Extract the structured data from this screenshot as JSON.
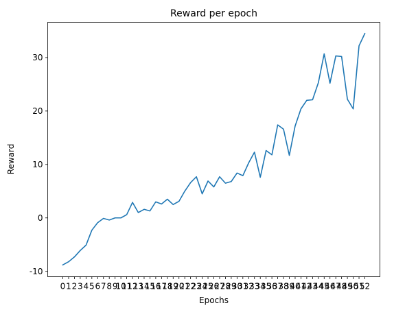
{
  "chart_data": {
    "type": "line",
    "title": "Reward per epoch",
    "xlabel": "Epochs",
    "ylabel": "Reward",
    "x": [
      0,
      1,
      2,
      3,
      4,
      5,
      6,
      7,
      8,
      9,
      10,
      11,
      12,
      13,
      14,
      15,
      16,
      17,
      18,
      19,
      20,
      21,
      22,
      23,
      24,
      25,
      26,
      27,
      28,
      29,
      30,
      31,
      32,
      33,
      34,
      35,
      36,
      37,
      38,
      39,
      40,
      41,
      42,
      43,
      44,
      45,
      46,
      47,
      48,
      49,
      50,
      51,
      52
    ],
    "series": [
      {
        "values": [
          -8.8,
          -8.2,
          -7.3,
          -6.1,
          -5.1,
          -2.3,
          -0.9,
          -0.1,
          -0.4,
          0.0,
          0.0,
          0.6,
          2.9,
          1.0,
          1.6,
          1.3,
          3.0,
          2.6,
          3.5,
          2.5,
          3.1,
          5.0,
          6.6,
          7.7,
          4.5,
          6.9,
          5.8,
          7.7,
          6.5,
          6.8,
          8.4,
          7.9,
          10.3,
          12.3,
          7.6,
          12.6,
          11.8,
          17.4,
          16.6,
          11.7,
          17.2,
          20.4,
          22.0,
          22.1,
          25.3,
          30.7,
          25.2,
          30.3,
          30.2,
          22.2,
          20.4,
          32.2,
          34.5
        ],
        "color": "#1f77b4"
      }
    ],
    "xticks": [
      "0",
      "1",
      "2",
      "3",
      "4",
      "5",
      "6",
      "7",
      "8",
      "9",
      "10",
      "11",
      "12",
      "13",
      "14",
      "15",
      "16",
      "17",
      "18",
      "19",
      "20",
      "21",
      "22",
      "23",
      "24",
      "25",
      "26",
      "27",
      "28",
      "29",
      "30",
      "31",
      "32",
      "33",
      "34",
      "35",
      "36",
      "37",
      "38",
      "39",
      "40",
      "41",
      "42",
      "43",
      "44",
      "45",
      "46",
      "47",
      "48",
      "49",
      "50",
      "51",
      "52"
    ],
    "yticks": [
      -10,
      0,
      10,
      20,
      30
    ],
    "xlim": [
      -2.6,
      54.6
    ],
    "ylim": [
      -11.0,
      36.6
    ],
    "grid": false,
    "legend": "none"
  }
}
